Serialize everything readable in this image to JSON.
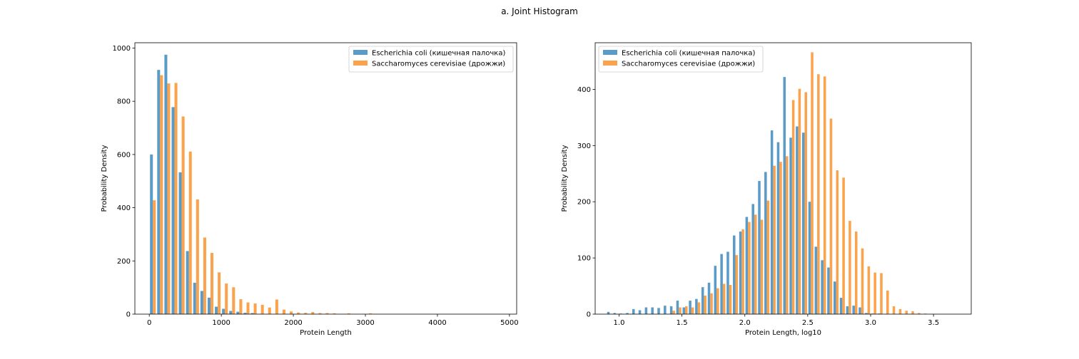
{
  "figure": {
    "title": "a. Joint Histogram"
  },
  "colors": {
    "series_0": "#5b9bc7",
    "series_1": "#fba24c",
    "axes_edge": "#000000",
    "legend_edge": "#cccccc"
  },
  "chart_data": [
    {
      "type": "bar",
      "xlabel": "Protein Length",
      "ylabel": "Probability Density",
      "xlim": [
        -200,
        5100
      ],
      "ylim": [
        0,
        1020
      ],
      "xticks": [
        0,
        1000,
        2000,
        3000,
        4000,
        5000
      ],
      "yticks": [
        0,
        200,
        400,
        600,
        800,
        1000
      ],
      "bin_width": 100,
      "grid": false,
      "legend_position": "top-right",
      "x": [
        50,
        150,
        250,
        350,
        450,
        550,
        650,
        750,
        850,
        950,
        1050,
        1150,
        1250,
        1350,
        1450,
        1550,
        1650,
        1750,
        1850,
        1950,
        2050,
        2150,
        2250,
        2350,
        2450,
        2550,
        2750,
        3050
      ],
      "series": [
        {
          "name": "Escherichia coli (кишечная палочка)",
          "values": [
            600,
            918,
            975,
            778,
            533,
            237,
            118,
            87,
            62,
            28,
            20,
            12,
            9,
            5,
            4,
            0,
            0,
            0,
            0,
            0,
            0,
            0,
            0,
            0,
            0,
            0,
            0,
            0
          ]
        },
        {
          "name": "Saccharomyces cerevisiae (дрожжи)",
          "values": [
            428,
            898,
            867,
            869,
            743,
            611,
            431,
            288,
            230,
            157,
            115,
            101,
            56,
            44,
            40,
            35,
            25,
            55,
            17,
            10,
            6,
            5,
            8,
            4,
            4,
            3,
            3,
            3
          ]
        }
      ]
    },
    {
      "type": "bar",
      "xlabel": "Protein Length, log10",
      "ylabel": "Probability Density",
      "xlim": [
        0.81,
        3.8
      ],
      "ylim": [
        0,
        483
      ],
      "xticks": [
        1.0,
        1.5,
        2.0,
        2.5,
        3.0,
        3.5
      ],
      "yticks": [
        0,
        100,
        200,
        300,
        400
      ],
      "bin_width": 0.05,
      "grid": false,
      "legend_position": "top-left",
      "x": [
        0.925,
        0.975,
        1.025,
        1.075,
        1.125,
        1.175,
        1.225,
        1.275,
        1.325,
        1.375,
        1.425,
        1.475,
        1.525,
        1.575,
        1.625,
        1.675,
        1.725,
        1.775,
        1.825,
        1.875,
        1.925,
        1.975,
        2.025,
        2.075,
        2.125,
        2.175,
        2.225,
        2.275,
        2.325,
        2.375,
        2.425,
        2.475,
        2.525,
        2.575,
        2.625,
        2.675,
        2.725,
        2.775,
        2.825,
        2.875,
        2.925,
        2.975,
        3.025,
        3.075,
        3.125,
        3.175,
        3.225,
        3.275,
        3.325,
        3.375,
        3.425,
        3.475,
        3.525,
        3.575,
        3.625,
        3.675
      ],
      "series": [
        {
          "name": "Escherichia coli (кишечная палочка)",
          "values": [
            4,
            2,
            1,
            2,
            9,
            7,
            12,
            12,
            11,
            15,
            14,
            24,
            12,
            24,
            27,
            48,
            56,
            86,
            107,
            111,
            140,
            147,
            173,
            196,
            237,
            253,
            327,
            306,
            422,
            314,
            334,
            323,
            200,
            120,
            96,
            83,
            58,
            29,
            14,
            15,
            12,
            2,
            1,
            1,
            0,
            0,
            0,
            0,
            0,
            0,
            0,
            0,
            0,
            0,
            0,
            0
          ]
        },
        {
          "name": "Saccharomyces cerevisiae (дрожжи)",
          "values": [
            0,
            0,
            0,
            0,
            0,
            0,
            0,
            0,
            0,
            0,
            6,
            12,
            14,
            12,
            21,
            33,
            37,
            46,
            54,
            52,
            105,
            151,
            164,
            177,
            168,
            202,
            264,
            271,
            281,
            381,
            401,
            395,
            466,
            427,
            423,
            348,
            256,
            243,
            166,
            147,
            117,
            85,
            74,
            73,
            42,
            14,
            9,
            6,
            5,
            2,
            1,
            0,
            0,
            0,
            0,
            0
          ]
        }
      ]
    }
  ]
}
